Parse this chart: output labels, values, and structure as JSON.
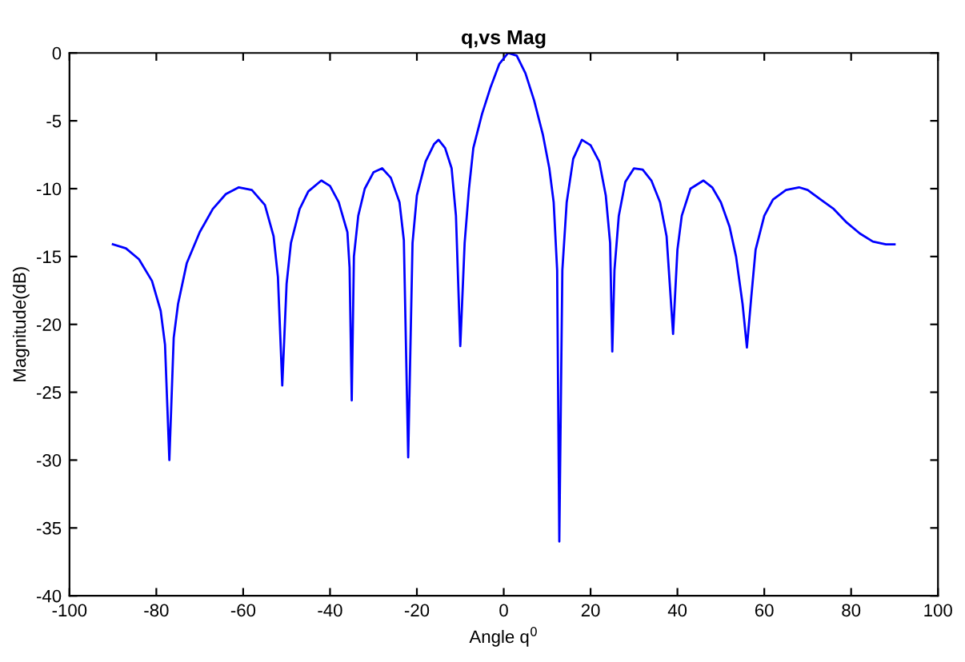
{
  "chart_data": {
    "type": "line",
    "title": "q,vs Mag",
    "xlabel": "Angle q$^{0}$",
    "ylabel": "Magnitude(dB)",
    "xlim": [
      -100,
      100
    ],
    "xticks": [
      -100,
      -80,
      -60,
      -40,
      -20,
      0,
      20,
      40,
      60,
      80,
      100
    ],
    "ylim": [
      -40,
      0
    ],
    "yticks": [
      -40,
      -35,
      -30,
      -25,
      -20,
      -15,
      -10,
      -5,
      0
    ],
    "grid": false,
    "legend": false,
    "marker": "none",
    "line_style": "solid",
    "series": [
      {
        "color": "#0000ff",
        "x": [
          -90,
          -87,
          -84,
          -81,
          -79,
          -78,
          -77,
          -76,
          -75,
          -73,
          -70,
          -67,
          -64,
          -61,
          -58,
          -55,
          -53,
          -52,
          -51,
          -50,
          -49,
          -47,
          -45,
          -42,
          -40,
          -38,
          -36,
          -35.5,
          -35,
          -34.5,
          -33.5,
          -32,
          -30,
          -28,
          -26,
          -24,
          -23,
          -22,
          -21,
          -20,
          -18,
          -16,
          -15,
          -13.5,
          -12,
          -11,
          -10,
          -9,
          -8,
          -7,
          -5,
          -3,
          -1,
          1,
          3,
          5,
          7,
          9,
          10.5,
          11.5,
          12.3,
          12.8,
          13.5,
          14.5,
          16,
          18,
          20,
          22,
          23.5,
          24.5,
          25,
          25.5,
          26.5,
          28,
          30,
          32,
          34,
          36,
          37.5,
          39,
          40,
          41,
          43,
          46,
          48,
          50,
          52,
          53.5,
          55,
          56,
          57,
          58,
          60,
          62,
          65,
          68,
          70,
          73,
          76,
          79,
          82,
          85,
          88,
          90
        ],
        "values": [
          -14.1,
          -14.4,
          -15.2,
          -16.8,
          -19,
          -21.5,
          -30,
          -21,
          -18.5,
          -15.5,
          -13.2,
          -11.5,
          -10.4,
          -9.9,
          -10.1,
          -11.2,
          -13.5,
          -16.5,
          -24.5,
          -17,
          -14,
          -11.5,
          -10.2,
          -9.4,
          -9.8,
          -11,
          -13.2,
          -15.8,
          -25.6,
          -15,
          -12,
          -10,
          -8.8,
          -8.5,
          -9.2,
          -11,
          -13.8,
          -29.8,
          -14,
          -10.5,
          -8,
          -6.7,
          -6.4,
          -7,
          -8.5,
          -12,
          -21.6,
          -14,
          -10,
          -7,
          -4.5,
          -2.5,
          -0.8,
          0,
          -0.2,
          -1.5,
          -3.5,
          -6,
          -8.5,
          -11,
          -16,
          -36,
          -16,
          -11,
          -7.8,
          -6.4,
          -6.8,
          -8,
          -10.5,
          -14,
          -22,
          -16,
          -12,
          -9.5,
          -8.5,
          -8.6,
          -9.4,
          -11,
          -13.5,
          -20.7,
          -14.5,
          -12,
          -10,
          -9.4,
          -9.9,
          -11,
          -12.8,
          -15,
          -18.5,
          -21.7,
          -18,
          -14.5,
          -12,
          -10.8,
          -10.1,
          -9.9,
          -10.1,
          -10.8,
          -11.5,
          -12.5,
          -13.3,
          -13.9,
          -14.1,
          -14.1
        ]
      }
    ]
  }
}
